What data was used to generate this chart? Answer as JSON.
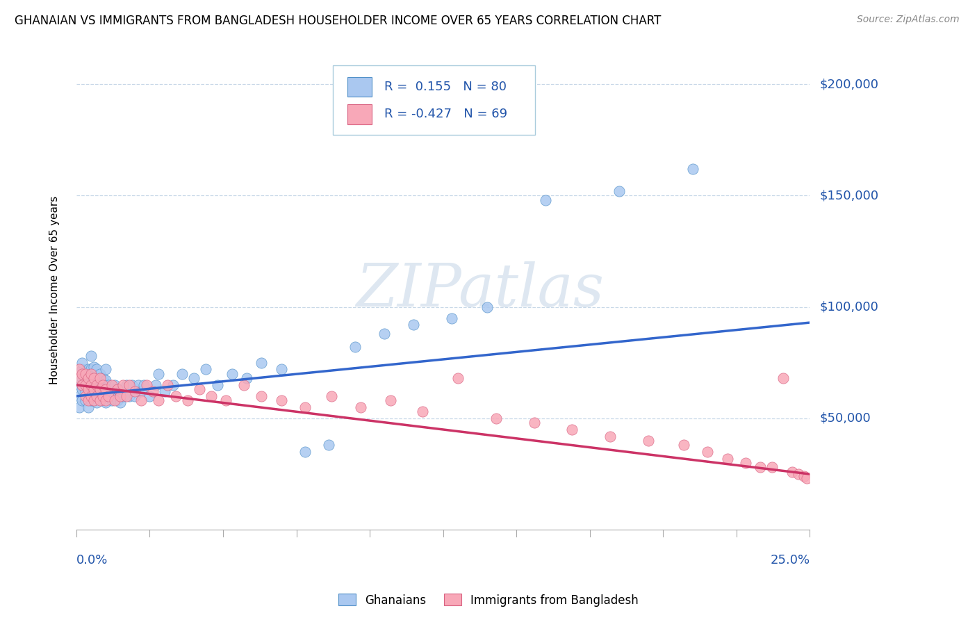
{
  "title": "GHANAIAN VS IMMIGRANTS FROM BANGLADESH HOUSEHOLDER INCOME OVER 65 YEARS CORRELATION CHART",
  "source": "Source: ZipAtlas.com",
  "ylabel": "Householder Income Over 65 years",
  "xmin": 0.0,
  "xmax": 0.25,
  "ymin": 0,
  "ymax": 215000,
  "yticks": [
    50000,
    100000,
    150000,
    200000
  ],
  "ytick_labels": [
    "$50,000",
    "$100,000",
    "$150,000",
    "$200,000"
  ],
  "ghanaian_R": 0.155,
  "ghanaian_N": 80,
  "bangladesh_R": -0.427,
  "bangladesh_N": 69,
  "ghanaian_color": "#aac8f0",
  "ghanaian_edge": "#5090c8",
  "bangladesh_color": "#f8a8b8",
  "bangladesh_edge": "#d86080",
  "trend_ghanaian_color": "#3366cc",
  "trend_bangladesh_color": "#cc3366",
  "legend_color": "#2255aa",
  "watermark": "ZIPatlas",
  "ghanaian_x": [
    0.001,
    0.001,
    0.001,
    0.002,
    0.002,
    0.002,
    0.002,
    0.002,
    0.003,
    0.003,
    0.003,
    0.003,
    0.004,
    0.004,
    0.004,
    0.004,
    0.005,
    0.005,
    0.005,
    0.005,
    0.005,
    0.006,
    0.006,
    0.006,
    0.006,
    0.007,
    0.007,
    0.007,
    0.007,
    0.008,
    0.008,
    0.008,
    0.009,
    0.009,
    0.009,
    0.01,
    0.01,
    0.01,
    0.01,
    0.011,
    0.011,
    0.012,
    0.012,
    0.013,
    0.013,
    0.014,
    0.014,
    0.015,
    0.015,
    0.016,
    0.017,
    0.018,
    0.019,
    0.02,
    0.021,
    0.022,
    0.023,
    0.025,
    0.027,
    0.028,
    0.03,
    0.033,
    0.036,
    0.04,
    0.044,
    0.048,
    0.053,
    0.058,
    0.063,
    0.07,
    0.078,
    0.086,
    0.095,
    0.105,
    0.115,
    0.128,
    0.14,
    0.16,
    0.185,
    0.21
  ],
  "ghanaian_y": [
    60000,
    55000,
    65000,
    58000,
    63000,
    68000,
    72000,
    75000,
    58000,
    62000,
    67000,
    70000,
    55000,
    60000,
    65000,
    72000,
    58000,
    62000,
    67000,
    72000,
    78000,
    58000,
    63000,
    68000,
    73000,
    57000,
    62000,
    67000,
    72000,
    60000,
    65000,
    70000,
    58000,
    63000,
    68000,
    57000,
    62000,
    67000,
    72000,
    60000,
    65000,
    58000,
    63000,
    60000,
    65000,
    58000,
    63000,
    57000,
    62000,
    60000,
    65000,
    60000,
    65000,
    60000,
    65000,
    62000,
    65000,
    60000,
    65000,
    70000,
    62000,
    65000,
    70000,
    68000,
    72000,
    65000,
    70000,
    68000,
    75000,
    72000,
    35000,
    38000,
    82000,
    88000,
    92000,
    95000,
    100000,
    148000,
    152000,
    162000
  ],
  "bangladesh_x": [
    0.001,
    0.001,
    0.002,
    0.002,
    0.003,
    0.003,
    0.003,
    0.004,
    0.004,
    0.004,
    0.005,
    0.005,
    0.005,
    0.006,
    0.006,
    0.006,
    0.007,
    0.007,
    0.008,
    0.008,
    0.008,
    0.009,
    0.009,
    0.01,
    0.01,
    0.011,
    0.012,
    0.013,
    0.014,
    0.015,
    0.016,
    0.017,
    0.018,
    0.02,
    0.022,
    0.024,
    0.026,
    0.028,
    0.031,
    0.034,
    0.038,
    0.042,
    0.046,
    0.051,
    0.057,
    0.063,
    0.07,
    0.078,
    0.087,
    0.097,
    0.107,
    0.118,
    0.13,
    0.143,
    0.156,
    0.169,
    0.182,
    0.195,
    0.207,
    0.215,
    0.222,
    0.228,
    0.233,
    0.237,
    0.241,
    0.244,
    0.246,
    0.248,
    0.249
  ],
  "bangladesh_y": [
    68000,
    72000,
    65000,
    70000,
    60000,
    65000,
    70000,
    58000,
    63000,
    68000,
    60000,
    65000,
    70000,
    58000,
    63000,
    68000,
    60000,
    65000,
    58000,
    63000,
    68000,
    60000,
    65000,
    58000,
    63000,
    60000,
    65000,
    58000,
    63000,
    60000,
    65000,
    60000,
    65000,
    62000,
    58000,
    65000,
    62000,
    58000,
    65000,
    60000,
    58000,
    63000,
    60000,
    58000,
    65000,
    60000,
    58000,
    55000,
    60000,
    55000,
    58000,
    53000,
    68000,
    50000,
    48000,
    45000,
    42000,
    40000,
    38000,
    35000,
    32000,
    30000,
    28000,
    28000,
    68000,
    26000,
    25000,
    24000,
    23000
  ]
}
